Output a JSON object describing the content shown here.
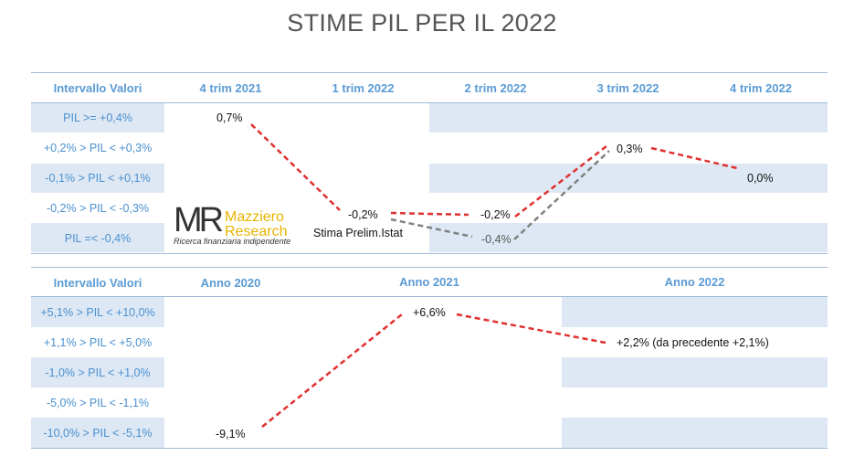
{
  "title": "STIME PIL PER IL 2022",
  "colors": {
    "band": "#dde8f4",
    "header_text": "#5b9bd5",
    "row_text": "#4a90d0",
    "red_line": "#e03030",
    "gray_line": "#808080"
  },
  "logo": {
    "initials": "MR",
    "name_line1": "Mazziero",
    "name_line2": "Research",
    "tagline": "Ricerca finanziaria indipendente"
  },
  "chart_data": [
    {
      "type": "table",
      "header": [
        "Intervallo Valori",
        "4 trim 2021",
        "1 trim 2022",
        "2 trim 2022",
        "3 trim 2022",
        "4 trim 2022"
      ],
      "rows": [
        "PIL >= +0,4%",
        "+0,2% > PIL < +0,3%",
        "-0,1% > PIL < +0,1%",
        "-0,2% > PIL < -0,3%",
        "PIL =< -0,4%"
      ],
      "series": [
        {
          "values": [
            0.7,
            -0.2,
            -0.2,
            0.3,
            0.0
          ],
          "labels": [
            "0,7%",
            "-0,2%",
            "-0,2%",
            "0,3%",
            "0,0%"
          ]
        },
        {
          "values": [
            null,
            -0.2,
            -0.4,
            0.3,
            null
          ],
          "labels": [
            "",
            "",
            "-0,4%",
            "",
            ""
          ]
        }
      ],
      "annotations": [
        "Stima Prelim.Istat"
      ]
    },
    {
      "type": "table",
      "header": [
        "Intervallo Valori",
        "Anno 2020",
        "Anno 2021",
        "Anno 2022"
      ],
      "rows": [
        "+5,1% > PIL < +10,0%",
        "+1,1% > PIL < +5,0%",
        "-1,0% > PIL < +1,0%",
        "-5,0% > PIL < -1,1%",
        "-10,0% > PIL < -5,1%"
      ],
      "series": [
        {
          "values": [
            -9.1,
            6.6,
            2.2
          ],
          "labels": [
            "-9,1%",
            "+6,6%",
            "+2,2% (da precedente +2,1%)"
          ]
        }
      ]
    }
  ]
}
